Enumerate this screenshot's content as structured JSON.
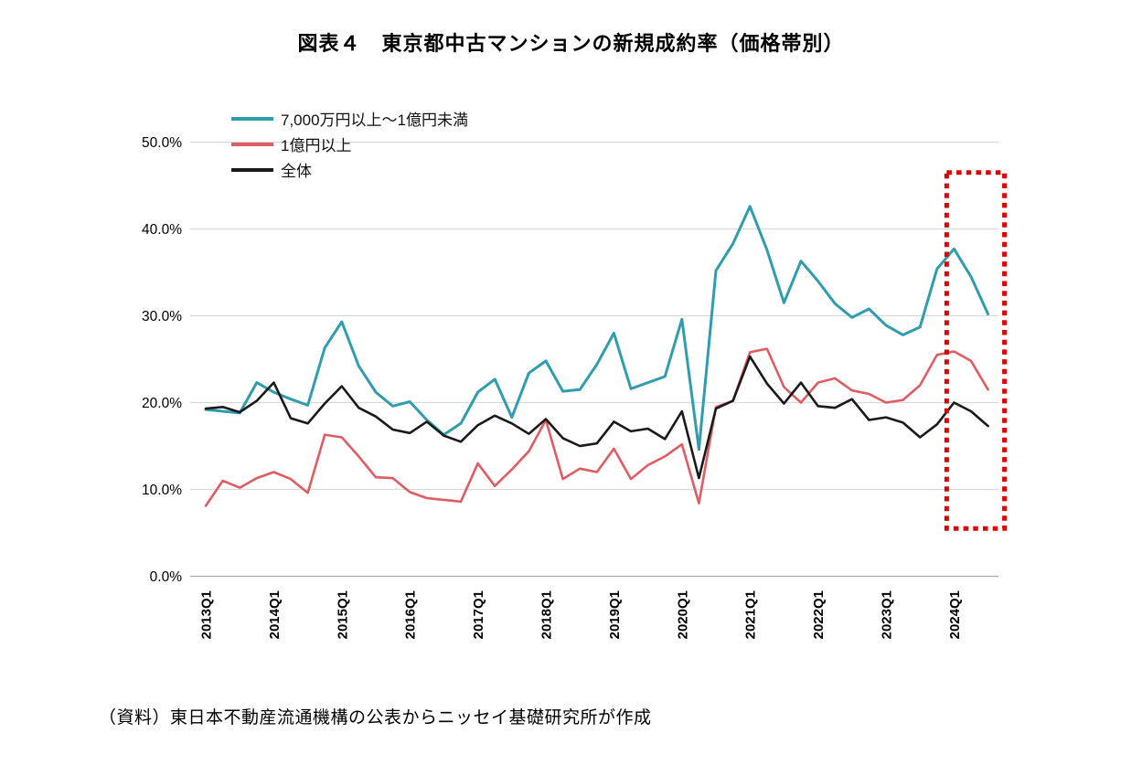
{
  "page": {
    "source_note": "（資料）東日本不動産流通機構の公表からニッセイ基礎研究所が作成"
  },
  "chart_data": {
    "type": "line",
    "title": "図表４　東京都中古マンションの新規成約率（価格帯別）",
    "xlabel": "",
    "ylabel": "",
    "ylim": [
      0,
      50
    ],
    "ytick_interval": 10,
    "ytick_labels": [
      "0.0%",
      "10.0%",
      "20.0%",
      "30.0%",
      "40.0%",
      "50.0%"
    ],
    "grid": true,
    "legend_position": "top-left",
    "x_tick_labels": [
      "2013Q1",
      "2014Q1",
      "2015Q1",
      "2016Q1",
      "2017Q1",
      "2018Q1",
      "2019Q1",
      "2020Q1",
      "2021Q1",
      "2022Q1",
      "2023Q1",
      "2024Q1"
    ],
    "x": [
      "2013Q1",
      "2013Q2",
      "2013Q3",
      "2013Q4",
      "2014Q1",
      "2014Q2",
      "2014Q3",
      "2014Q4",
      "2015Q1",
      "2015Q2",
      "2015Q3",
      "2015Q4",
      "2016Q1",
      "2016Q2",
      "2016Q3",
      "2016Q4",
      "2017Q1",
      "2017Q2",
      "2017Q3",
      "2017Q4",
      "2018Q1",
      "2018Q2",
      "2018Q3",
      "2018Q4",
      "2019Q1",
      "2019Q2",
      "2019Q3",
      "2019Q4",
      "2020Q1",
      "2020Q2",
      "2020Q3",
      "2020Q4",
      "2021Q1",
      "2021Q2",
      "2021Q3",
      "2021Q4",
      "2022Q1",
      "2022Q2",
      "2022Q3",
      "2022Q4",
      "2023Q1",
      "2023Q2",
      "2023Q3",
      "2023Q4",
      "2024Q1",
      "2024Q2",
      "2024Q3"
    ],
    "series": [
      {
        "name": "7,000万円以上～1億円未満",
        "color": "#2f9dad",
        "values": [
          19.2,
          19.0,
          18.8,
          22.3,
          21.2,
          20.4,
          19.7,
          26.3,
          29.3,
          24.2,
          21.2,
          19.6,
          20.1,
          18.0,
          16.3,
          17.6,
          21.2,
          22.7,
          18.3,
          23.4,
          24.8,
          21.3,
          21.5,
          24.4,
          28.0,
          21.6,
          22.3,
          23.0,
          29.6,
          14.6,
          35.2,
          38.3,
          42.6,
          37.6,
          31.5,
          36.3,
          34.0,
          31.4,
          29.8,
          30.8,
          28.9,
          27.8,
          28.7,
          35.4,
          37.7,
          34.5,
          30.2
        ]
      },
      {
        "name": "1億円以上",
        "color": "#e05c63",
        "values": [
          8.1,
          11.0,
          10.2,
          11.3,
          12.0,
          11.2,
          9.6,
          16.3,
          16.0,
          13.8,
          11.4,
          11.3,
          9.7,
          9.0,
          8.8,
          8.6,
          13.0,
          10.4,
          12.3,
          14.4,
          18.0,
          11.2,
          12.4,
          12.0,
          14.7,
          11.2,
          12.8,
          13.8,
          15.2,
          8.4,
          19.5,
          20.2,
          25.8,
          26.2,
          21.8,
          20.0,
          22.3,
          22.8,
          21.4,
          21.0,
          20.0,
          20.3,
          22.0,
          25.5,
          25.9,
          24.8,
          21.5
        ]
      },
      {
        "name": "全体",
        "color": "#1a1a1a",
        "values": [
          19.3,
          19.5,
          18.9,
          20.2,
          22.3,
          18.2,
          17.6,
          19.9,
          21.9,
          19.4,
          18.4,
          16.9,
          16.5,
          17.8,
          16.2,
          15.5,
          17.4,
          18.5,
          17.6,
          16.4,
          18.1,
          15.9,
          15.0,
          15.3,
          17.8,
          16.7,
          17.0,
          15.8,
          19.0,
          11.3,
          19.3,
          20.2,
          25.3,
          22.2,
          19.9,
          22.3,
          19.6,
          19.4,
          20.4,
          18.0,
          18.3,
          17.7,
          16.0,
          17.5,
          20.0,
          19.0,
          17.3
        ]
      }
    ],
    "highlight": {
      "shape": "dotted-box",
      "color": "#e00000",
      "x_from": "2024Q1",
      "x_to": "2024Q3",
      "y_from": 5.5,
      "y_to": 46.5
    }
  }
}
